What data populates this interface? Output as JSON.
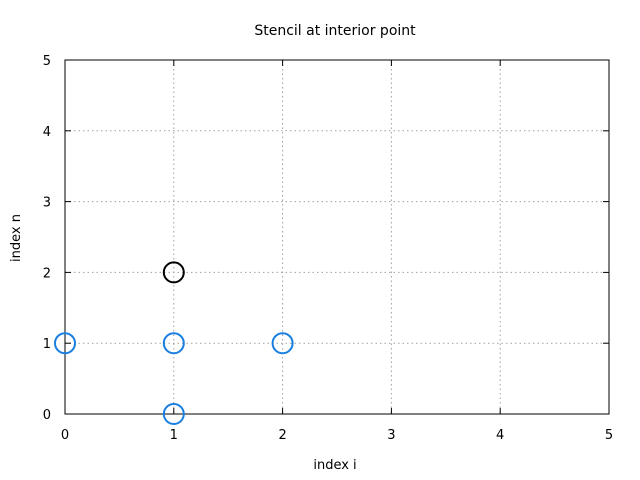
{
  "chart_data": {
    "type": "scatter",
    "title": "Stencil at interior point",
    "xlabel": "index i",
    "ylabel": "index n",
    "xlim": [
      0,
      5
    ],
    "ylim": [
      0,
      5
    ],
    "xticks": [
      "0",
      "1",
      "2",
      "3",
      "4",
      "5"
    ],
    "yticks": [
      "0",
      "1",
      "2",
      "3",
      "4",
      "5"
    ],
    "grid": true,
    "legend": "none",
    "marker": "open-circle",
    "series": [
      {
        "color": "#1a7fe0",
        "points": [
          {
            "x": 0,
            "y": 1
          },
          {
            "x": 1,
            "y": 1
          },
          {
            "x": 2,
            "y": 1
          },
          {
            "x": 1,
            "y": 0
          }
        ]
      },
      {
        "color": "#000000",
        "points": [
          {
            "x": 1,
            "y": 2
          }
        ]
      }
    ]
  }
}
